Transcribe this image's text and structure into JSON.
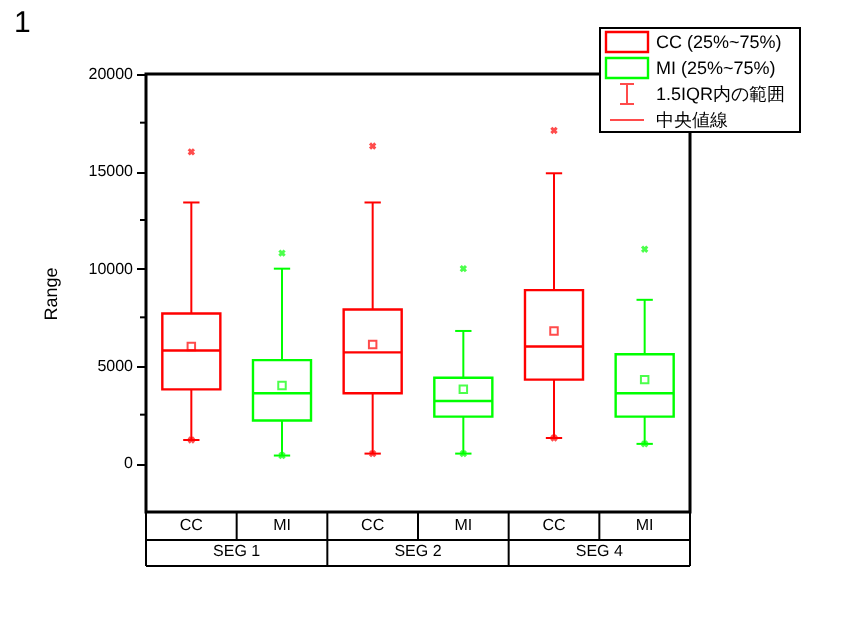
{
  "chart_data": {
    "type": "box",
    "categories": [
      "CC",
      "MI",
      "CC",
      "MI",
      "CC",
      "MI"
    ],
    "ylabel": "Range",
    "ylim": [
      -2500,
      20000
    ],
    "yticks": [
      0,
      {
        "value": 2500,
        "label": null
      },
      5000,
      {
        "value": 7500,
        "label": null
      },
      10000,
      {
        "value": 12500,
        "label": null
      },
      15000,
      {
        "value": 17500,
        "label": null
      },
      20000
    ],
    "legend": "top right",
    "grid": false,
    "series": [
      {
        "name": "CC (25%~75%)",
        "color": "#ff0000",
        "boxes": [
          {
            "low": 1200,
            "q1": 3800,
            "median": 5800,
            "q3": 7700,
            "high": 13400,
            "mean": 6000,
            "outliers": [
              16000,
              1200
            ]
          },
          null,
          {
            "low": 500,
            "q1": 3600,
            "median": 5700,
            "q3": 7900,
            "high": 13400,
            "mean": 6100,
            "outliers": [
              16300,
              500
            ]
          },
          null,
          {
            "low": 1300,
            "q1": 4300,
            "median": 6000,
            "q3": 8900,
            "high": 14900,
            "mean": 6800,
            "outliers": [
              17100,
              1300
            ]
          },
          null
        ]
      },
      {
        "name": "MI (25%~75%)",
        "color": "#00ff00",
        "boxes": [
          null,
          {
            "low": 400,
            "q1": 2200,
            "median": 3600,
            "q3": 5300,
            "high": 10000,
            "mean": 4000,
            "outliers": [
              10800,
              400
            ]
          },
          null,
          {
            "low": 500,
            "q1": 2400,
            "median": 3200,
            "q3": 4400,
            "high": 6800,
            "mean": 3800,
            "outliers": [
              10000,
              500
            ]
          },
          null,
          {
            "low": 1000,
            "q1": 2400,
            "median": 3600,
            "q3": 5600,
            "high": 8400,
            "mean": 4300,
            "outliers": [
              11000,
              1000
            ]
          }
        ]
      }
    ],
    "annotations": [
      "1",
      "SEG 1",
      "SEG 2",
      "SEG 4",
      "1.5IQR内の範囲",
      "中央値線"
    ]
  }
}
